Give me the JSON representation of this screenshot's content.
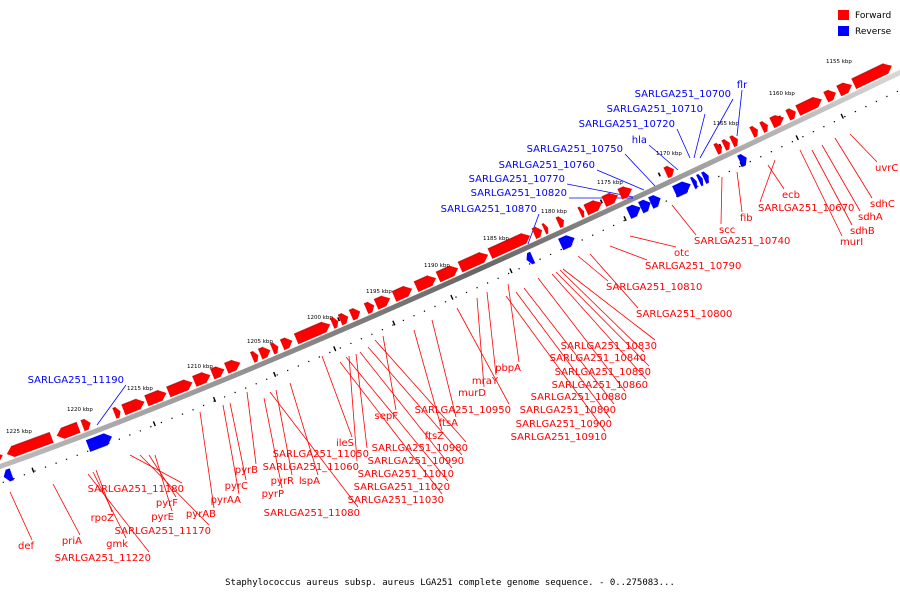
{
  "colors": {
    "forward": "#ff0000",
    "reverse": "#0000ff",
    "axis": "#555555"
  },
  "legend": {
    "forward": "Forward",
    "reverse": "Reverse"
  },
  "caption": "Staphylococcus aureus subsp. aureus LGA251 complete genome sequence. - 0..275083...",
  "ticks": [
    "1155 kbp",
    "1160 kbp",
    "1165 kbp",
    "1170 kbp",
    "1175 kbp",
    "1180 kbp",
    "1185 kbp",
    "1190 kbp",
    "1195 kbp",
    "1200 kbp",
    "1205 kbp",
    "1210 kbp",
    "1215 kbp",
    "1220 kbp",
    "1225 kbp"
  ],
  "reverse_labels": [
    "flr",
    "SARLGA251_10700",
    "SARLGA251_10710",
    "SARLGA251_10720",
    "hla",
    "SARLGA251_10750",
    "SARLGA251_10760",
    "SARLGA251_10770",
    "SARLGA251_10820",
    "SARLGA251_10870",
    "SARLGA251_11190"
  ],
  "forward_labels": [
    "uvrC",
    "sdhC",
    "sdhA",
    "sdhB",
    "murI",
    "SARLGA251_10670",
    "ecb",
    "fib",
    "scc",
    "SARLGA251_10740",
    "otc",
    "SARLGA251_10790",
    "SARLGA251_10810",
    "SARLGA251_10800",
    "SARLGA251_10830",
    "SARLGA251_10840",
    "SARLGA251_10850",
    "SARLGA251_10860",
    "pbpA",
    "SARLGA251_10880",
    "mraY",
    "SARLGA251_10890",
    "murD",
    "SARLGA251_10900",
    "SARLGA251_10910",
    "SARLGA251_10950",
    "ftsA",
    "sepF",
    "ftsZ",
    "SARLGA251_10980",
    "SARLGA251_10990",
    "ileS",
    "SARLGA251_11050",
    "SARLGA251_11010",
    "SARLGA251_11060",
    "SARLGA251_11020",
    "lspA",
    "SARLGA251_11030",
    "pyrR",
    "pyrB",
    "SARLGA251_11080",
    "pyrP",
    "pyrC",
    "pyrAA",
    "pyrAB",
    "pyrE",
    "pyrF",
    "SARLGA251_11170",
    "SARLGA251_11180",
    "rpoZ",
    "gmk",
    "SARLGA251_11220",
    "priA",
    "def"
  ]
}
